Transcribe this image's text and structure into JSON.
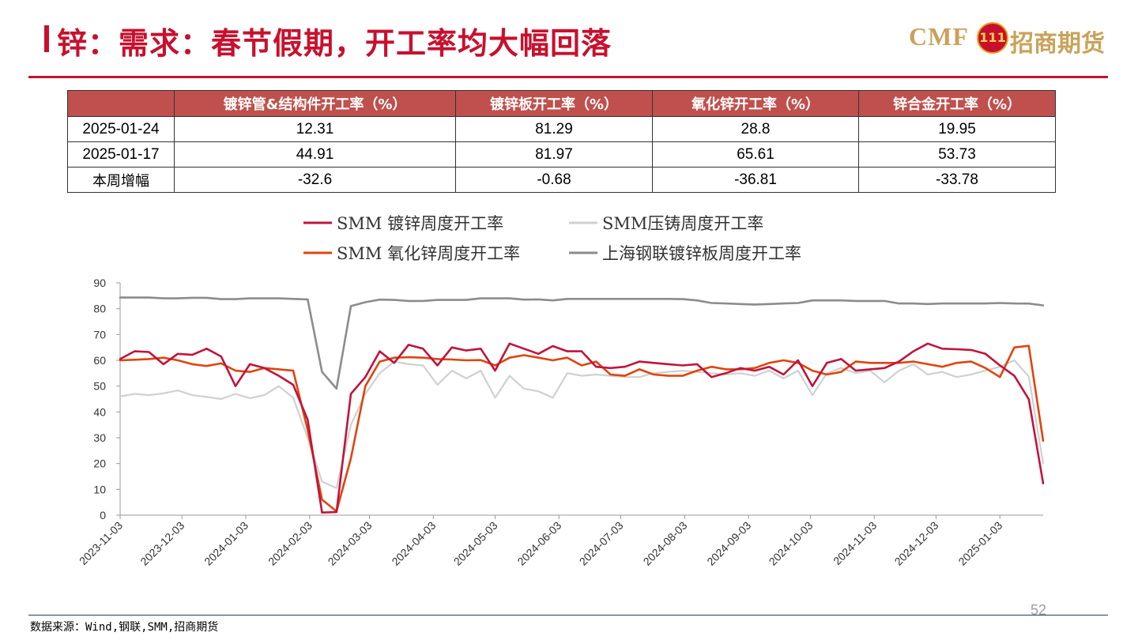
{
  "title": "锌：需求：春节假期，开工率均大幅回落",
  "logo": {
    "cmf": "CMF",
    "emblem": "111",
    "company": "招商期货"
  },
  "table": {
    "headers": [
      "",
      "镀锌管&结构件开工率（%）",
      "镀锌板开工率（%）",
      "氧化锌开工率（%）",
      "锌合金开工率（%）"
    ],
    "rows": [
      {
        "label": "2025-01-24",
        "values": [
          "12.31",
          "81.29",
          "28.8",
          "19.95"
        ]
      },
      {
        "label": "2025-01-17",
        "values": [
          "44.91",
          "81.97",
          "65.61",
          "53.73"
        ]
      },
      {
        "label": "本周增幅",
        "values": [
          "-32.6",
          "-0.68",
          "-36.81",
          "-33.78"
        ]
      }
    ],
    "header_color": "#c0504d"
  },
  "chart_data": {
    "type": "line",
    "title": "",
    "xlabel": "",
    "ylabel": "",
    "ylim": [
      0,
      90
    ],
    "yticks": [
      0,
      10,
      20,
      30,
      40,
      50,
      60,
      70,
      80,
      90
    ],
    "xrange": [
      "2023-11-03",
      "2025-01-24"
    ],
    "xticks": [
      "2023-11-03",
      "2023-12-03",
      "2024-01-03",
      "2024-02-03",
      "2024-03-03",
      "2024-04-03",
      "2024-05-03",
      "2024-06-03",
      "2024-07-03",
      "2024-08-03",
      "2024-09-03",
      "2024-10-03",
      "2024-11-03",
      "2024-12-03",
      "2025-01-03"
    ],
    "grid": false,
    "legend_position": "top",
    "series": [
      {
        "name": "SMM 镀锌周度开工率",
        "color": "#c0143c",
        "width": 2.6,
        "x": [
          "2023-11-03",
          "2023-11-10",
          "2023-11-17",
          "2023-11-24",
          "2023-12-01",
          "2023-12-08",
          "2023-12-15",
          "2023-12-22",
          "2023-12-29",
          "2024-01-05",
          "2024-01-12",
          "2024-01-19",
          "2024-01-26",
          "2024-02-02",
          "2024-02-09",
          "2024-02-16",
          "2024-02-23",
          "2024-03-01",
          "2024-03-08",
          "2024-03-15",
          "2024-03-22",
          "2024-03-29",
          "2024-04-05",
          "2024-04-12",
          "2024-04-19",
          "2024-04-26",
          "2024-05-03",
          "2024-05-10",
          "2024-05-17",
          "2024-05-24",
          "2024-05-31",
          "2024-06-07",
          "2024-06-14",
          "2024-06-21",
          "2024-06-28",
          "2024-07-05",
          "2024-07-12",
          "2024-07-19",
          "2024-07-26",
          "2024-08-02",
          "2024-08-09",
          "2024-08-16",
          "2024-08-23",
          "2024-08-30",
          "2024-09-06",
          "2024-09-13",
          "2024-09-20",
          "2024-09-27",
          "2024-10-04",
          "2024-10-11",
          "2024-10-18",
          "2024-10-25",
          "2024-11-01",
          "2024-11-08",
          "2024-11-15",
          "2024-11-22",
          "2024-11-29",
          "2024-12-06",
          "2024-12-13",
          "2024-12-20",
          "2024-12-27",
          "2025-01-03",
          "2025-01-10",
          "2025-01-17",
          "2025-01-24"
        ],
        "values": [
          60.5,
          63.5,
          63.2,
          58.5,
          62.5,
          62.1,
          64.5,
          61.5,
          50.0,
          58.5,
          57.0,
          54.0,
          50.5,
          37.0,
          1.0,
          1.2,
          47.0,
          53.5,
          63.5,
          59.0,
          66.0,
          64.5,
          58.0,
          65.0,
          63.8,
          64.5,
          56.0,
          66.5,
          64.5,
          62.5,
          65.5,
          63.5,
          63.5,
          57.5,
          57.0,
          57.5,
          59.5,
          59.0,
          58.5,
          58.0,
          58.5,
          53.5,
          55.0,
          57.0,
          56.0,
          57.5,
          54.5,
          60.0,
          50.0,
          59.0,
          60.5,
          56.0,
          56.5,
          57.0,
          59.5,
          63.5,
          66.5,
          64.5,
          64.3,
          64.0,
          62.5,
          58.0,
          54.0,
          44.91,
          12.31
        ]
      },
      {
        "name": "SMM压铸周度开工率",
        "color": "#d0d0d0",
        "width": 2.2,
        "x": [
          "2023-11-03",
          "2023-11-10",
          "2023-11-17",
          "2023-11-24",
          "2023-12-01",
          "2023-12-08",
          "2023-12-15",
          "2023-12-22",
          "2023-12-29",
          "2024-01-05",
          "2024-01-12",
          "2024-01-19",
          "2024-01-26",
          "2024-02-02",
          "2024-02-09",
          "2024-02-16",
          "2024-02-23",
          "2024-03-01",
          "2024-03-08",
          "2024-03-15",
          "2024-03-22",
          "2024-03-29",
          "2024-04-05",
          "2024-04-12",
          "2024-04-19",
          "2024-04-26",
          "2024-05-03",
          "2024-05-10",
          "2024-05-17",
          "2024-05-24",
          "2024-05-31",
          "2024-06-07",
          "2024-06-14",
          "2024-06-21",
          "2024-06-28",
          "2024-07-05",
          "2024-07-12",
          "2024-07-19",
          "2024-07-26",
          "2024-08-02",
          "2024-08-09",
          "2024-08-16",
          "2024-08-23",
          "2024-08-30",
          "2024-09-06",
          "2024-09-13",
          "2024-09-20",
          "2024-09-27",
          "2024-10-04",
          "2024-10-11",
          "2024-10-18",
          "2024-10-25",
          "2024-11-01",
          "2024-11-08",
          "2024-11-15",
          "2024-11-22",
          "2024-11-29",
          "2024-12-06",
          "2024-12-13",
          "2024-12-20",
          "2024-12-27",
          "2025-01-03",
          "2025-01-10",
          "2025-01-17",
          "2025-01-24"
        ],
        "values": [
          46.0,
          47.0,
          46.5,
          47.2,
          48.3,
          46.5,
          45.8,
          45.0,
          47.0,
          45.3,
          46.5,
          50.0,
          45.5,
          30.0,
          13.0,
          10.5,
          35.0,
          47.0,
          55.0,
          59.5,
          58.5,
          58.0,
          50.5,
          56.0,
          53.0,
          56.0,
          45.5,
          54.0,
          49.0,
          48.0,
          45.5,
          55.0,
          54.0,
          54.5,
          54.0,
          53.5,
          53.5,
          55.0,
          55.5,
          56.0,
          55.5,
          55.0,
          54.5,
          55.0,
          54.0,
          56.0,
          53.0,
          56.0,
          46.5,
          55.0,
          57.0,
          55.0,
          56.0,
          51.5,
          56.0,
          58.5,
          54.5,
          55.5,
          53.5,
          54.5,
          56.0,
          57.5,
          60.0,
          53.73,
          19.95
        ]
      },
      {
        "name": "SMM 氧化锌周度开工率",
        "color": "#e0440e",
        "width": 2.6,
        "x": [
          "2023-11-03",
          "2023-11-10",
          "2023-11-17",
          "2023-11-24",
          "2023-12-01",
          "2023-12-08",
          "2023-12-15",
          "2023-12-22",
          "2023-12-29",
          "2024-01-05",
          "2024-01-12",
          "2024-01-19",
          "2024-01-26",
          "2024-02-02",
          "2024-02-09",
          "2024-02-16",
          "2024-02-23",
          "2024-03-01",
          "2024-03-08",
          "2024-03-15",
          "2024-03-22",
          "2024-03-29",
          "2024-04-05",
          "2024-04-12",
          "2024-04-19",
          "2024-04-26",
          "2024-05-03",
          "2024-05-10",
          "2024-05-17",
          "2024-05-24",
          "2024-05-31",
          "2024-06-07",
          "2024-06-14",
          "2024-06-21",
          "2024-06-28",
          "2024-07-05",
          "2024-07-12",
          "2024-07-19",
          "2024-07-26",
          "2024-08-02",
          "2024-08-09",
          "2024-08-16",
          "2024-08-23",
          "2024-08-30",
          "2024-09-06",
          "2024-09-13",
          "2024-09-20",
          "2024-09-27",
          "2024-10-04",
          "2024-10-11",
          "2024-10-18",
          "2024-10-25",
          "2024-11-01",
          "2024-11-08",
          "2024-11-15",
          "2024-11-22",
          "2024-11-29",
          "2024-12-06",
          "2024-12-13",
          "2024-12-20",
          "2024-12-27",
          "2025-01-03",
          "2025-01-10",
          "2025-01-17",
          "2025-01-24"
        ],
        "values": [
          60.0,
          60.2,
          60.5,
          61.0,
          60.0,
          58.5,
          57.8,
          58.8,
          56.0,
          55.5,
          57.0,
          56.5,
          56.0,
          33.0,
          6.0,
          1.5,
          22.0,
          50.0,
          59.5,
          61.0,
          61.2,
          61.0,
          60.5,
          60.3,
          60.0,
          60.1,
          58.0,
          61.0,
          62.0,
          61.0,
          60.0,
          61.0,
          58.0,
          59.5,
          54.5,
          54.0,
          56.5,
          54.5,
          54.0,
          54.0,
          56.0,
          57.5,
          56.5,
          56.5,
          57.0,
          59.0,
          60.0,
          59.0,
          56.0,
          54.5,
          55.5,
          59.5,
          59.0,
          59.0,
          59.0,
          59.5,
          58.5,
          57.5,
          59.0,
          59.5,
          57.0,
          53.5,
          65.0,
          65.61,
          28.8
        ]
      },
      {
        "name": "上海钢联镀锌板周度开工率",
        "color": "#8c8c8c",
        "width": 2.6,
        "x": [
          "2023-11-03",
          "2023-11-10",
          "2023-11-17",
          "2023-11-24",
          "2023-12-01",
          "2023-12-08",
          "2023-12-15",
          "2023-12-22",
          "2023-12-29",
          "2024-01-05",
          "2024-01-12",
          "2024-01-19",
          "2024-01-26",
          "2024-02-02",
          "2024-02-09",
          "2024-02-16",
          "2024-02-23",
          "2024-03-01",
          "2024-03-08",
          "2024-03-15",
          "2024-03-22",
          "2024-03-29",
          "2024-04-05",
          "2024-04-12",
          "2024-04-19",
          "2024-04-26",
          "2024-05-03",
          "2024-05-10",
          "2024-05-17",
          "2024-05-24",
          "2024-05-31",
          "2024-06-07",
          "2024-06-14",
          "2024-06-21",
          "2024-06-28",
          "2024-07-05",
          "2024-07-12",
          "2024-07-19",
          "2024-07-26",
          "2024-08-02",
          "2024-08-09",
          "2024-08-16",
          "2024-08-23",
          "2024-08-30",
          "2024-09-06",
          "2024-09-13",
          "2024-09-20",
          "2024-09-27",
          "2024-10-04",
          "2024-10-11",
          "2024-10-18",
          "2024-10-25",
          "2024-11-01",
          "2024-11-08",
          "2024-11-15",
          "2024-11-22",
          "2024-11-29",
          "2024-12-06",
          "2024-12-13",
          "2024-12-20",
          "2024-12-27",
          "2025-01-03",
          "2025-01-10",
          "2025-01-17",
          "2025-01-24"
        ],
        "values": [
          84.3,
          84.3,
          84.3,
          84.0,
          84.0,
          84.2,
          84.2,
          83.7,
          83.7,
          84.0,
          84.0,
          84.0,
          83.8,
          83.6,
          55.5,
          49.0,
          81.0,
          82.5,
          83.5,
          83.4,
          83.0,
          83.0,
          83.4,
          83.4,
          83.4,
          84.0,
          84.0,
          84.0,
          83.5,
          83.6,
          83.2,
          83.8,
          83.8,
          83.8,
          83.8,
          83.8,
          83.8,
          83.8,
          83.8,
          83.7,
          83.2,
          82.2,
          82.0,
          81.8,
          81.6,
          81.8,
          82.0,
          82.2,
          83.2,
          83.2,
          83.2,
          83.0,
          83.0,
          83.0,
          82.0,
          82.0,
          81.8,
          82.0,
          82.0,
          82.0,
          82.0,
          82.2,
          82.0,
          81.97,
          81.29
        ]
      }
    ]
  },
  "source": "数据来源：Wind,钢联,SMM,招商期货",
  "page_number": "52"
}
